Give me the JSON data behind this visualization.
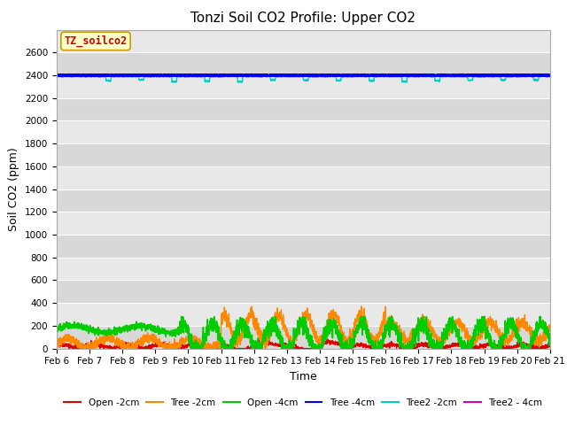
{
  "title": "Tonzi Soil CO2 Profile: Upper CO2",
  "xlabel": "Time",
  "ylabel": "Soil CO2 (ppm)",
  "ylim": [
    0,
    2800
  ],
  "yticks": [
    0,
    200,
    400,
    600,
    800,
    1000,
    1200,
    1400,
    1600,
    1800,
    2000,
    2200,
    2400,
    2600
  ],
  "xtick_labels": [
    "Feb 6",
    "Feb 7",
    "Feb 8",
    "Feb 9",
    "Feb 10",
    "Feb 11",
    "Feb 12",
    "Feb 13",
    "Feb 14",
    "Feb 15",
    "Feb 16",
    "Feb 17",
    "Feb 18",
    "Feb 19",
    "Feb 20",
    "Feb 21"
  ],
  "legend_label": "TZ_soilco2",
  "legend_box_facecolor": "#ffffcc",
  "legend_text_color": "#cc0000",
  "legend_box_edgecolor": "#cc9900",
  "bg_color": "#e8e8e8",
  "alt_band_color": "#d8d8d8",
  "grid_color": "#ffffff",
  "colors": {
    "Open -2cm": "#dd0000",
    "Tree -2cm": "#ff8800",
    "Open -4cm": "#00cc00",
    "Tree -4cm": "#0000ff",
    "Tree2 -2cm": "#00cccc",
    "Tree2 - 4cm": "#cc00cc"
  },
  "title_fontsize": 11,
  "axis_label_fontsize": 9,
  "tick_fontsize": 7.5
}
